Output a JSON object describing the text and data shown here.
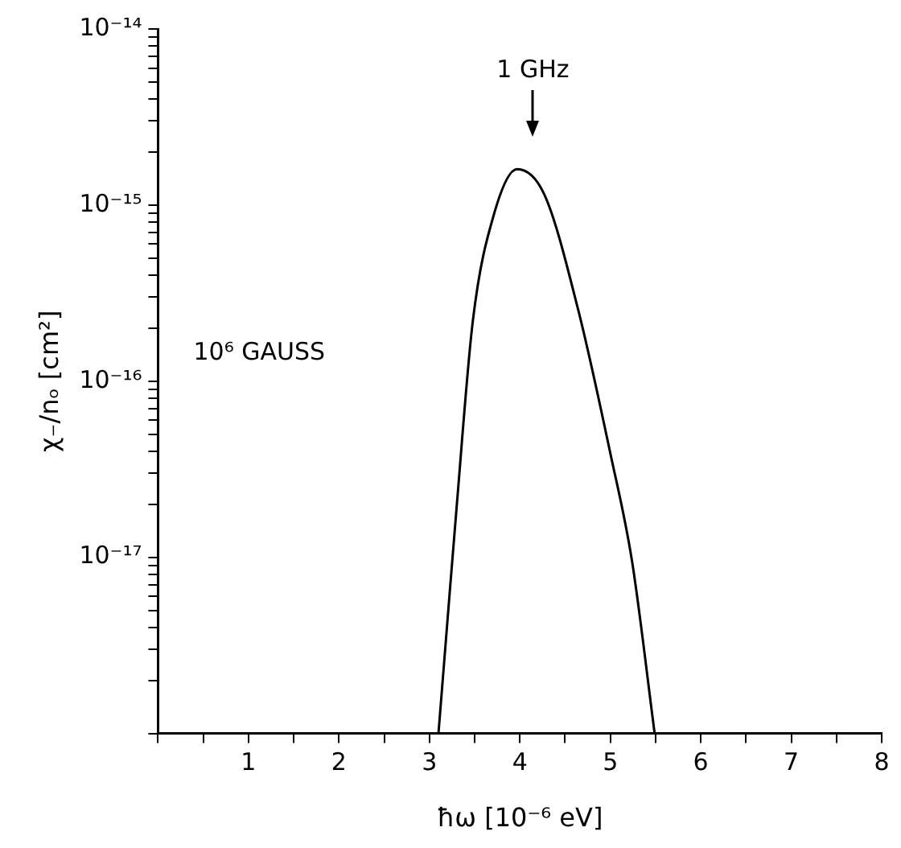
{
  "chart_data": {
    "type": "line",
    "xlabel": "ħω [10⁻⁶ eV]",
    "ylabel": "χ₋/nₒ [cm²]",
    "log": "y",
    "grid": false,
    "legend": false,
    "marker": "none",
    "line_style": "solid",
    "x": [
      3.1,
      3.2,
      3.3,
      3.48,
      3.72,
      3.97,
      4.27,
      4.64,
      5.0,
      5.24,
      5.49
    ],
    "series": [
      {
        "color": "#000000",
        "values": [
          1e-18,
          4.4e-18,
          1.9e-17,
          2.2e-16,
          9.1e-16,
          1.6e-15,
          1.15e-15,
          2.6e-16,
          3.9e-17,
          9.5e-18,
          1e-18
        ]
      }
    ],
    "xlim": [
      0,
      8
    ],
    "ylim": [
      1e-18,
      1e-14
    ],
    "xticks": [
      {
        "value": 0,
        "label": null
      },
      {
        "value": 0.5,
        "label": null
      },
      1,
      {
        "value": 1.5,
        "label": null
      },
      2,
      {
        "value": 2.5,
        "label": null
      },
      3,
      {
        "value": 3.5,
        "label": null
      },
      4,
      {
        "value": 4.5,
        "label": null
      },
      5,
      {
        "value": 5.5,
        "label": null
      },
      6,
      {
        "value": 6.5,
        "label": null
      },
      7,
      {
        "value": 7.5,
        "label": null
      },
      8
    ],
    "yticks": [
      {
        "value": 1e-18,
        "label": null
      },
      {
        "value": 2e-18,
        "label": null
      },
      {
        "value": 3e-18,
        "label": null
      },
      {
        "value": 4e-18,
        "label": null
      },
      {
        "value": 5e-18,
        "label": null
      },
      {
        "value": 6e-18,
        "label": null
      },
      {
        "value": 7e-18,
        "label": null
      },
      {
        "value": 8e-18,
        "label": null
      },
      {
        "value": 9e-18,
        "label": null
      },
      {
        "value": 1e-17,
        "label": "10⁻¹⁷"
      },
      {
        "value": 2e-17,
        "label": null
      },
      {
        "value": 3e-17,
        "label": null
      },
      {
        "value": 4e-17,
        "label": null
      },
      {
        "value": 5e-17,
        "label": null
      },
      {
        "value": 6e-17,
        "label": null
      },
      {
        "value": 7e-17,
        "label": null
      },
      {
        "value": 8e-17,
        "label": null
      },
      {
        "value": 9e-17,
        "label": null
      },
      {
        "value": 1e-16,
        "label": "10⁻¹⁶"
      },
      {
        "value": 2e-16,
        "label": null
      },
      {
        "value": 3e-16,
        "label": null
      },
      {
        "value": 4e-16,
        "label": null
      },
      {
        "value": 5e-16,
        "label": null
      },
      {
        "value": 6e-16,
        "label": null
      },
      {
        "value": 7e-16,
        "label": null
      },
      {
        "value": 8e-16,
        "label": null
      },
      {
        "value": 9e-16,
        "label": null
      },
      {
        "value": 1e-15,
        "label": "10⁻¹⁵"
      },
      {
        "value": 2e-15,
        "label": null
      },
      {
        "value": 3e-15,
        "label": null
      },
      {
        "value": 4e-15,
        "label": null
      },
      {
        "value": 5e-15,
        "label": null
      },
      {
        "value": 6e-15,
        "label": null
      },
      {
        "value": 7e-15,
        "label": null
      },
      {
        "value": 8e-15,
        "label": null
      },
      {
        "value": 9e-15,
        "label": null
      },
      {
        "value": 1e-14,
        "label": "10⁻¹⁴"
      }
    ],
    "annotations": [
      "1 GHz",
      "10⁶ GAUSS"
    ]
  }
}
